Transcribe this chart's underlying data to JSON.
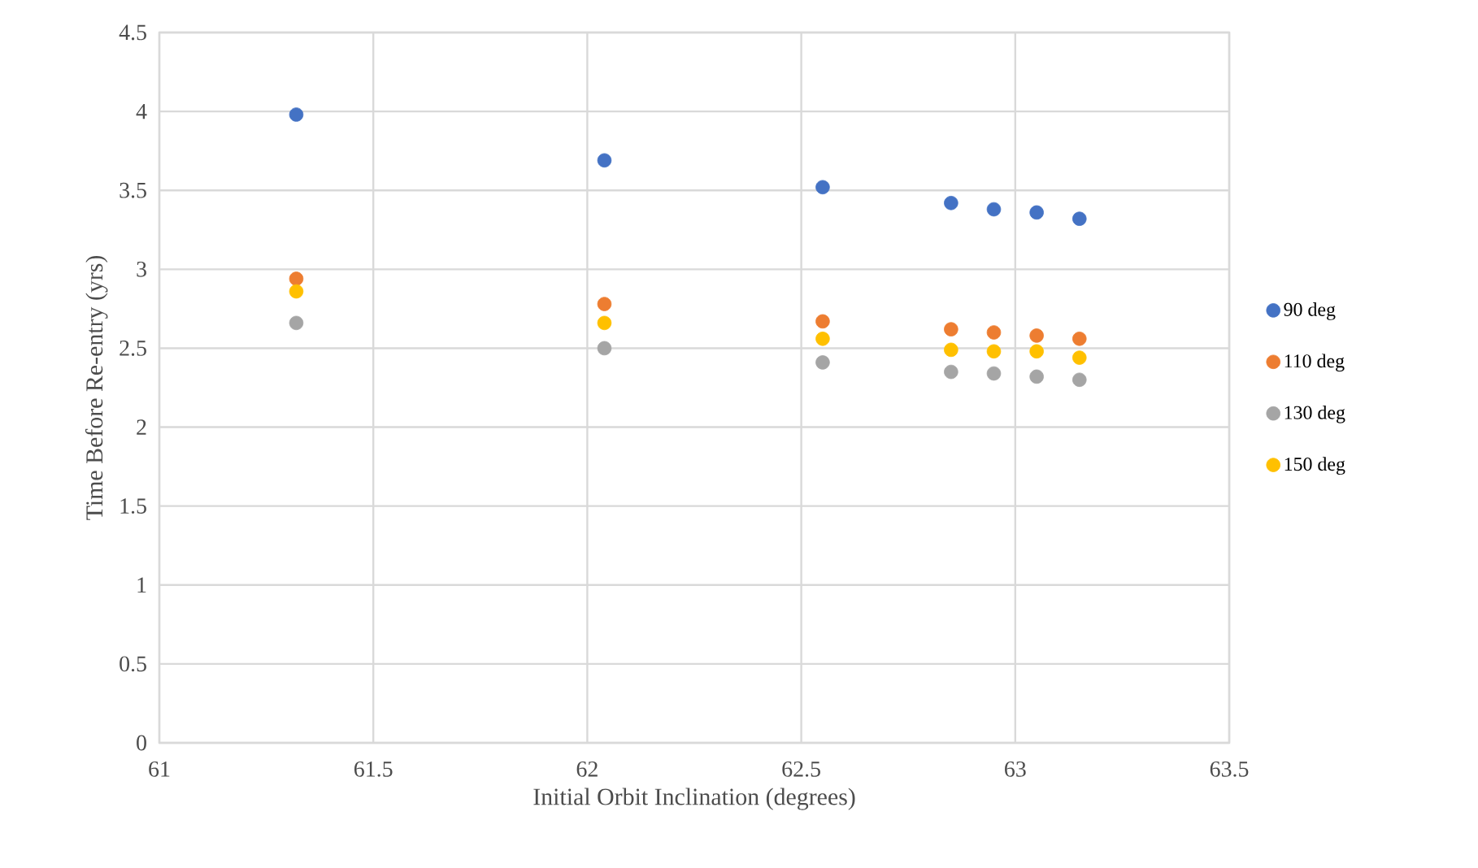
{
  "chart_data": {
    "type": "scatter",
    "xlabel": "Initial Orbit Inclination (degrees)",
    "ylabel": "Time Before Re-entry (yrs)",
    "x": [
      61.32,
      62.04,
      62.55,
      62.85,
      62.95,
      63.05,
      63.15
    ],
    "series": [
      {
        "name": "90 deg",
        "color": "#4472c4",
        "values": [
          3.98,
          3.69,
          3.52,
          3.42,
          3.38,
          3.36,
          3.32
        ]
      },
      {
        "name": "110 deg",
        "color": "#ed7d31",
        "values": [
          2.94,
          2.78,
          2.67,
          2.62,
          2.6,
          2.58,
          2.56
        ]
      },
      {
        "name": "130 deg",
        "color": "#a5a5a5",
        "values": [
          2.66,
          2.5,
          2.41,
          2.35,
          2.34,
          2.32,
          2.3
        ]
      },
      {
        "name": "150 deg",
        "color": "#ffc000",
        "values": [
          2.86,
          2.66,
          2.56,
          2.49,
          2.48,
          2.48,
          2.44
        ]
      }
    ],
    "xlim": [
      61,
      63.5
    ],
    "ylim": [
      0,
      4.5
    ],
    "xticks": [
      61,
      61.5,
      62,
      62.5,
      63,
      63.5
    ],
    "yticks": [
      0,
      0.5,
      1,
      1.5,
      2,
      2.5,
      3,
      3.5,
      4,
      4.5
    ],
    "grid": true,
    "legend": "right",
    "marker": "circle"
  }
}
